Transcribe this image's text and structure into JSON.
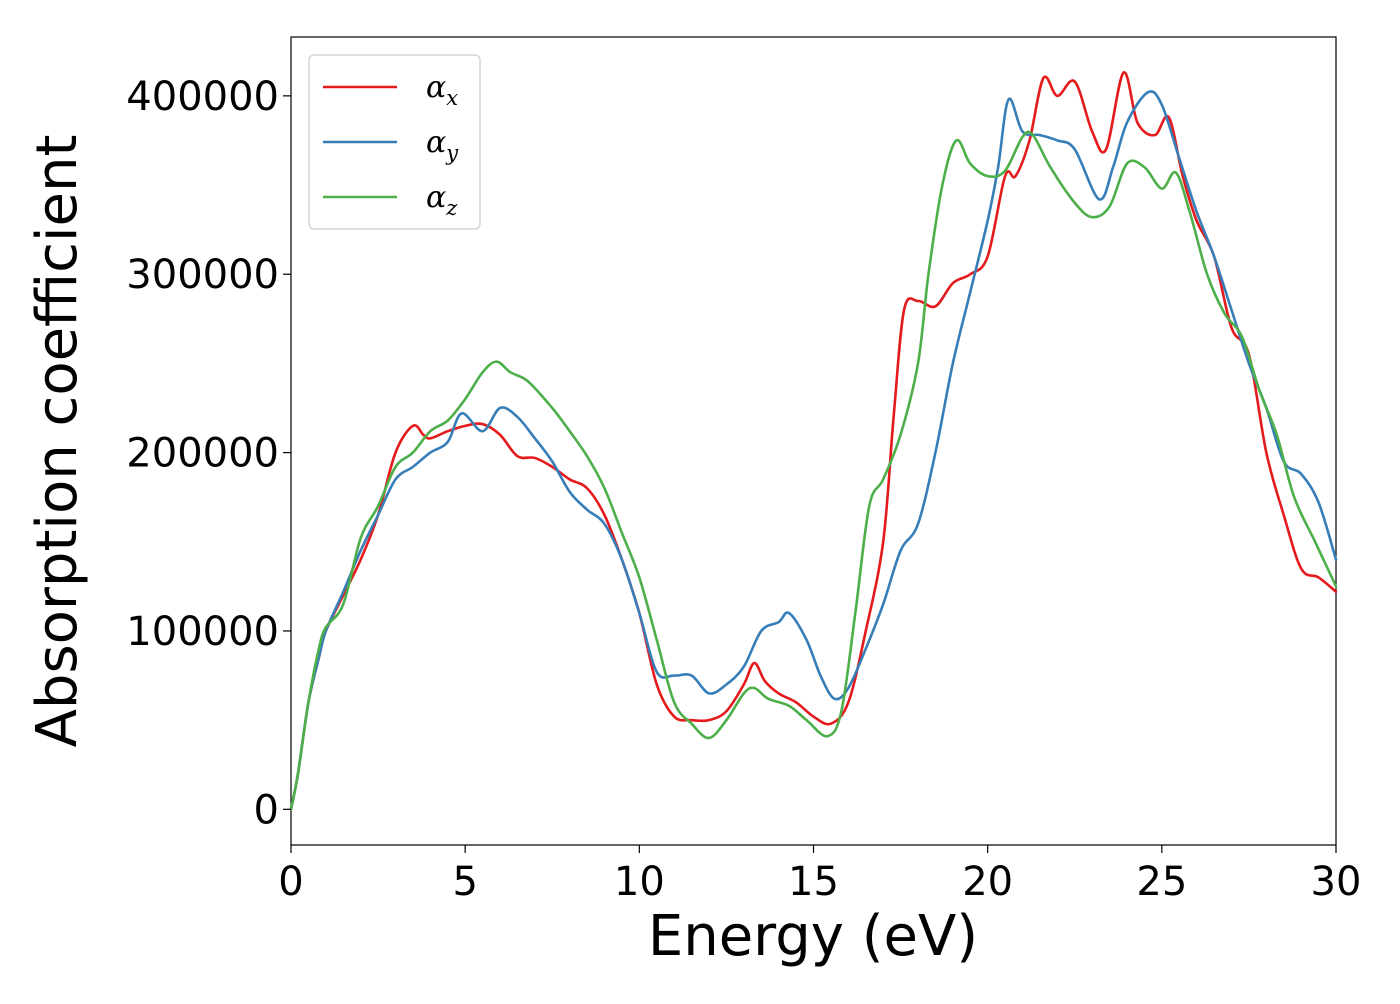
{
  "chart_data": {
    "type": "line",
    "title": "",
    "xlabel": "Energy (eV)",
    "ylabel": "Absorption coefficient",
    "xlim": [
      0,
      30
    ],
    "ylim": [
      -20000,
      433000
    ],
    "xticks": [
      0,
      5,
      10,
      15,
      20,
      25,
      30
    ],
    "xtick_labels": [
      "0",
      "5",
      "10",
      "15",
      "20",
      "25",
      "30"
    ],
    "yticks": [
      0,
      100000,
      200000,
      300000,
      400000
    ],
    "ytick_labels": [
      "0",
      "100000",
      "200000",
      "300000",
      "400000"
    ],
    "grid": false,
    "legend": {
      "placement": "top-left"
    },
    "series": [
      {
        "name": "α",
        "subscript": "x",
        "color": "#e41a1c",
        "points": [
          [
            0,
            0
          ],
          [
            0.2,
            20000
          ],
          [
            0.5,
            60000
          ],
          [
            0.8,
            85000
          ],
          [
            1,
            100000
          ],
          [
            1.5,
            120000
          ],
          [
            2,
            140000
          ],
          [
            2.5,
            165000
          ],
          [
            3,
            200000
          ],
          [
            3.5,
            215000
          ],
          [
            3.8,
            210000
          ],
          [
            4,
            208000
          ],
          [
            4.5,
            212000
          ],
          [
            5,
            215000
          ],
          [
            5.5,
            216000
          ],
          [
            6,
            210000
          ],
          [
            6.5,
            198000
          ],
          [
            7,
            197000
          ],
          [
            7.5,
            192000
          ],
          [
            8,
            185000
          ],
          [
            8.5,
            180000
          ],
          [
            9,
            165000
          ],
          [
            9.5,
            140000
          ],
          [
            10,
            110000
          ],
          [
            10.5,
            70000
          ],
          [
            11,
            52000
          ],
          [
            11.5,
            50000
          ],
          [
            12,
            50000
          ],
          [
            12.5,
            55000
          ],
          [
            13,
            70000
          ],
          [
            13.3,
            82000
          ],
          [
            13.6,
            72000
          ],
          [
            14,
            65000
          ],
          [
            14.5,
            60000
          ],
          [
            15,
            52000
          ],
          [
            15.5,
            48000
          ],
          [
            16,
            60000
          ],
          [
            16.5,
            100000
          ],
          [
            17,
            150000
          ],
          [
            17.3,
            220000
          ],
          [
            17.6,
            280000
          ],
          [
            18,
            285000
          ],
          [
            18.5,
            282000
          ],
          [
            19,
            295000
          ],
          [
            19.5,
            300000
          ],
          [
            20,
            310000
          ],
          [
            20.5,
            355000
          ],
          [
            20.8,
            355000
          ],
          [
            21.2,
            375000
          ],
          [
            21.6,
            410000
          ],
          [
            22,
            400000
          ],
          [
            22.5,
            408000
          ],
          [
            23,
            380000
          ],
          [
            23.4,
            370000
          ],
          [
            23.9,
            413000
          ],
          [
            24.3,
            385000
          ],
          [
            24.8,
            378000
          ],
          [
            25.2,
            388000
          ],
          [
            25.6,
            355000
          ],
          [
            26,
            330000
          ],
          [
            26.5,
            310000
          ],
          [
            27,
            270000
          ],
          [
            27.5,
            255000
          ],
          [
            28,
            200000
          ],
          [
            28.5,
            165000
          ],
          [
            29,
            135000
          ],
          [
            29.5,
            130000
          ],
          [
            30,
            122000
          ]
        ]
      },
      {
        "name": "α",
        "subscript": "y",
        "color": "#377eb8",
        "points": [
          [
            0,
            0
          ],
          [
            0.2,
            20000
          ],
          [
            0.5,
            60000
          ],
          [
            0.8,
            85000
          ],
          [
            1,
            100000
          ],
          [
            1.5,
            122000
          ],
          [
            2,
            145000
          ],
          [
            2.5,
            165000
          ],
          [
            3,
            185000
          ],
          [
            3.5,
            192000
          ],
          [
            4,
            200000
          ],
          [
            4.5,
            206000
          ],
          [
            4.9,
            222000
          ],
          [
            5.5,
            212000
          ],
          [
            6,
            225000
          ],
          [
            6.5,
            220000
          ],
          [
            7,
            208000
          ],
          [
            7.5,
            195000
          ],
          [
            8,
            178000
          ],
          [
            8.5,
            168000
          ],
          [
            9,
            160000
          ],
          [
            9.5,
            140000
          ],
          [
            10,
            110000
          ],
          [
            10.5,
            77000
          ],
          [
            11,
            75000
          ],
          [
            11.5,
            75000
          ],
          [
            12,
            65000
          ],
          [
            12.5,
            70000
          ],
          [
            13,
            80000
          ],
          [
            13.5,
            100000
          ],
          [
            14,
            105000
          ],
          [
            14.3,
            110000
          ],
          [
            14.8,
            95000
          ],
          [
            15.2,
            75000
          ],
          [
            15.6,
            62000
          ],
          [
            16,
            68000
          ],
          [
            16.5,
            90000
          ],
          [
            17,
            115000
          ],
          [
            17.5,
            145000
          ],
          [
            18,
            160000
          ],
          [
            18.5,
            200000
          ],
          [
            19,
            250000
          ],
          [
            19.5,
            290000
          ],
          [
            20,
            330000
          ],
          [
            20.3,
            360000
          ],
          [
            20.6,
            398000
          ],
          [
            21,
            380000
          ],
          [
            21.5,
            378000
          ],
          [
            22,
            375000
          ],
          [
            22.5,
            370000
          ],
          [
            23.2,
            342000
          ],
          [
            23.6,
            360000
          ],
          [
            24,
            385000
          ],
          [
            24.6,
            402000
          ],
          [
            25,
            395000
          ],
          [
            25.5,
            365000
          ],
          [
            26,
            335000
          ],
          [
            26.5,
            310000
          ],
          [
            27,
            280000
          ],
          [
            27.5,
            250000
          ],
          [
            28,
            225000
          ],
          [
            28.5,
            195000
          ],
          [
            29,
            188000
          ],
          [
            29.5,
            172000
          ],
          [
            30,
            140000
          ]
        ]
      },
      {
        "name": "α",
        "subscript": "z",
        "color": "#4daf4a",
        "points": [
          [
            0,
            0
          ],
          [
            0.2,
            20000
          ],
          [
            0.5,
            60000
          ],
          [
            0.8,
            90000
          ],
          [
            1,
            102000
          ],
          [
            1.5,
            115000
          ],
          [
            2,
            152000
          ],
          [
            2.5,
            170000
          ],
          [
            3,
            192000
          ],
          [
            3.5,
            200000
          ],
          [
            4,
            212000
          ],
          [
            4.5,
            218000
          ],
          [
            5,
            230000
          ],
          [
            5.5,
            245000
          ],
          [
            5.9,
            251000
          ],
          [
            6.3,
            245000
          ],
          [
            6.8,
            240000
          ],
          [
            7.5,
            225000
          ],
          [
            8,
            212000
          ],
          [
            8.5,
            198000
          ],
          [
            9,
            180000
          ],
          [
            9.5,
            155000
          ],
          [
            10,
            130000
          ],
          [
            10.5,
            95000
          ],
          [
            11,
            60000
          ],
          [
            11.5,
            48000
          ],
          [
            12,
            40000
          ],
          [
            12.5,
            50000
          ],
          [
            13,
            65000
          ],
          [
            13.3,
            68000
          ],
          [
            13.7,
            62000
          ],
          [
            14.3,
            58000
          ],
          [
            14.8,
            50000
          ],
          [
            15.4,
            41000
          ],
          [
            15.8,
            55000
          ],
          [
            16.2,
            110000
          ],
          [
            16.6,
            170000
          ],
          [
            17,
            185000
          ],
          [
            17.5,
            210000
          ],
          [
            18,
            250000
          ],
          [
            18.3,
            300000
          ],
          [
            18.7,
            350000
          ],
          [
            19.1,
            375000
          ],
          [
            19.5,
            362000
          ],
          [
            20,
            355000
          ],
          [
            20.5,
            358000
          ],
          [
            21,
            377000
          ],
          [
            21.3,
            378000
          ],
          [
            21.8,
            360000
          ],
          [
            22.5,
            340000
          ],
          [
            23,
            332000
          ],
          [
            23.5,
            338000
          ],
          [
            24,
            362000
          ],
          [
            24.5,
            360000
          ],
          [
            25,
            348000
          ],
          [
            25.4,
            357000
          ],
          [
            25.8,
            335000
          ],
          [
            26.3,
            300000
          ],
          [
            26.8,
            278000
          ],
          [
            27.3,
            265000
          ],
          [
            27.8,
            235000
          ],
          [
            28.3,
            210000
          ],
          [
            28.8,
            175000
          ],
          [
            29.4,
            150000
          ],
          [
            30,
            125000
          ]
        ]
      }
    ]
  }
}
